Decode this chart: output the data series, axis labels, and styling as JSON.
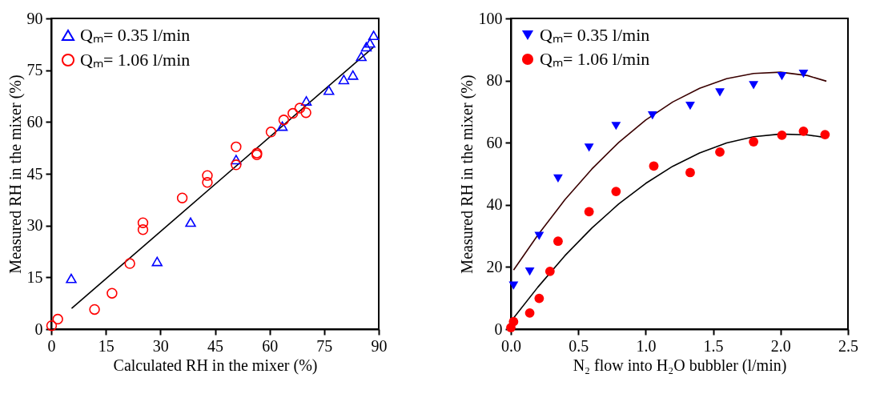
{
  "chart_data": [
    {
      "type": "scatter",
      "xlabel": "Calculated RH in the mixer (%)",
      "ylabel": "Measured RH in the mixer (%)",
      "xlim": [
        0,
        90
      ],
      "ylim": [
        0,
        90
      ],
      "xticks": [
        0,
        15,
        30,
        45,
        60,
        75,
        90
      ],
      "yticks": [
        0,
        15,
        30,
        45,
        60,
        75,
        90
      ],
      "grid": false,
      "legend": "top left",
      "series": [
        {
          "name": "Qₘ= 0.35 l/min",
          "color": "#0000ff",
          "marker": "triangle",
          "x": [
            5.5,
            29.1,
            38.3,
            50.8,
            63.5,
            70.1,
            76.3,
            80.4,
            82.9,
            85.2,
            86.6,
            87.6,
            88.6
          ],
          "values": [
            14.7,
            19.6,
            31,
            49.1,
            58.8,
            66.1,
            69.2,
            72.3,
            73.6,
            79,
            81.8,
            82.9,
            85.1
          ]
        },
        {
          "name": "Qₘ= 1.06 l/min",
          "color": "#ff0000",
          "marker": "circle",
          "x": [
            0.1,
            1.8,
            11.9,
            16.7,
            21.6,
            25.2,
            25.2,
            36,
            42.9,
            42.9,
            50.8,
            50.8,
            56.5,
            56.5,
            60.4,
            63.9,
            66.4,
            68.3,
            70
          ],
          "values": [
            1,
            2.9,
            5.7,
            10.4,
            19,
            28.8,
            30.8,
            38,
            42.5,
            44.5,
            47.6,
            52.8,
            50.5,
            51,
            57.1,
            60.6,
            62.5,
            64,
            62.7
          ]
        },
        {
          "type": "line",
          "color": "#000000",
          "marker": "none",
          "line_style": "solid",
          "x": [
            5.6,
            88.5
          ],
          "values": [
            6,
            81.6
          ]
        }
      ]
    },
    {
      "type": "scatter",
      "xlabel": "N₂ flow into H₂O bubbler (l/min)",
      "ylabel": "Measured RH in the mixer (%)",
      "xlim": [
        0,
        2.5
      ],
      "ylim": [
        0,
        100
      ],
      "xticks": [
        {
          "value": 0,
          "label": "0.0"
        },
        {
          "value": 0.5,
          "label": "0.5"
        },
        {
          "value": 1,
          "label": "1.0"
        },
        {
          "value": 1.5,
          "label": "1.5"
        },
        {
          "value": 2,
          "label": "2.0"
        },
        {
          "value": 2.5,
          "label": "2.5"
        }
      ],
      "yticks": [
        0,
        20,
        40,
        60,
        80,
        100
      ],
      "grid": false,
      "legend": "top left",
      "series": [
        {
          "name": "Qₘ= 0.35 l/min",
          "color": "#0000ff",
          "marker": "triangle",
          "x": [
            0.02,
            0.14,
            0.21,
            0.35,
            0.58,
            0.78,
            1.05,
            1.33,
            1.55,
            1.8,
            2.01,
            2.17
          ],
          "values": [
            14,
            18.5,
            30,
            48.5,
            58.4,
            65.4,
            68.8,
            71.9,
            76.2,
            78.5,
            81.4,
            82.2
          ]
        },
        {
          "name": "Qₘ= 1.06 l/min",
          "color": "#ff0000",
          "marker": "circle",
          "x": [
            0,
            0.02,
            0.14,
            0.21,
            0.29,
            0.35,
            0.58,
            0.78,
            1.06,
            1.33,
            1.55,
            1.8,
            2.01,
            2.17,
            2.33
          ],
          "values": [
            0.5,
            2.4,
            5.2,
            9.9,
            18.6,
            28.3,
            37.8,
            44.3,
            52.5,
            50.4,
            57,
            60.3,
            62.4,
            63.7,
            62.6
          ]
        },
        {
          "type": "line",
          "color": "#3a0000",
          "marker": "none",
          "line_style": "solid",
          "x": [
            0.02,
            0.2,
            0.4,
            0.6,
            0.8,
            1,
            1.2,
            1.4,
            1.6,
            1.8,
            2,
            2.2,
            2.34
          ],
          "values": [
            19,
            30.3,
            41.6,
            51.5,
            60.1,
            67.3,
            73.1,
            77.5,
            80.6,
            82.3,
            82.7,
            81.6,
            79.8
          ]
        },
        {
          "type": "line",
          "color": "#000000",
          "marker": "none",
          "line_style": "solid",
          "x": [
            0.01,
            0.2,
            0.4,
            0.6,
            0.8,
            1,
            1.2,
            1.4,
            1.6,
            1.8,
            2,
            2.2,
            2.33
          ],
          "values": [
            3,
            13.5,
            23.6,
            32.5,
            40.3,
            46.9,
            52.4,
            56.7,
            59.9,
            61.9,
            62.8,
            62.5,
            61.7
          ]
        }
      ]
    }
  ]
}
